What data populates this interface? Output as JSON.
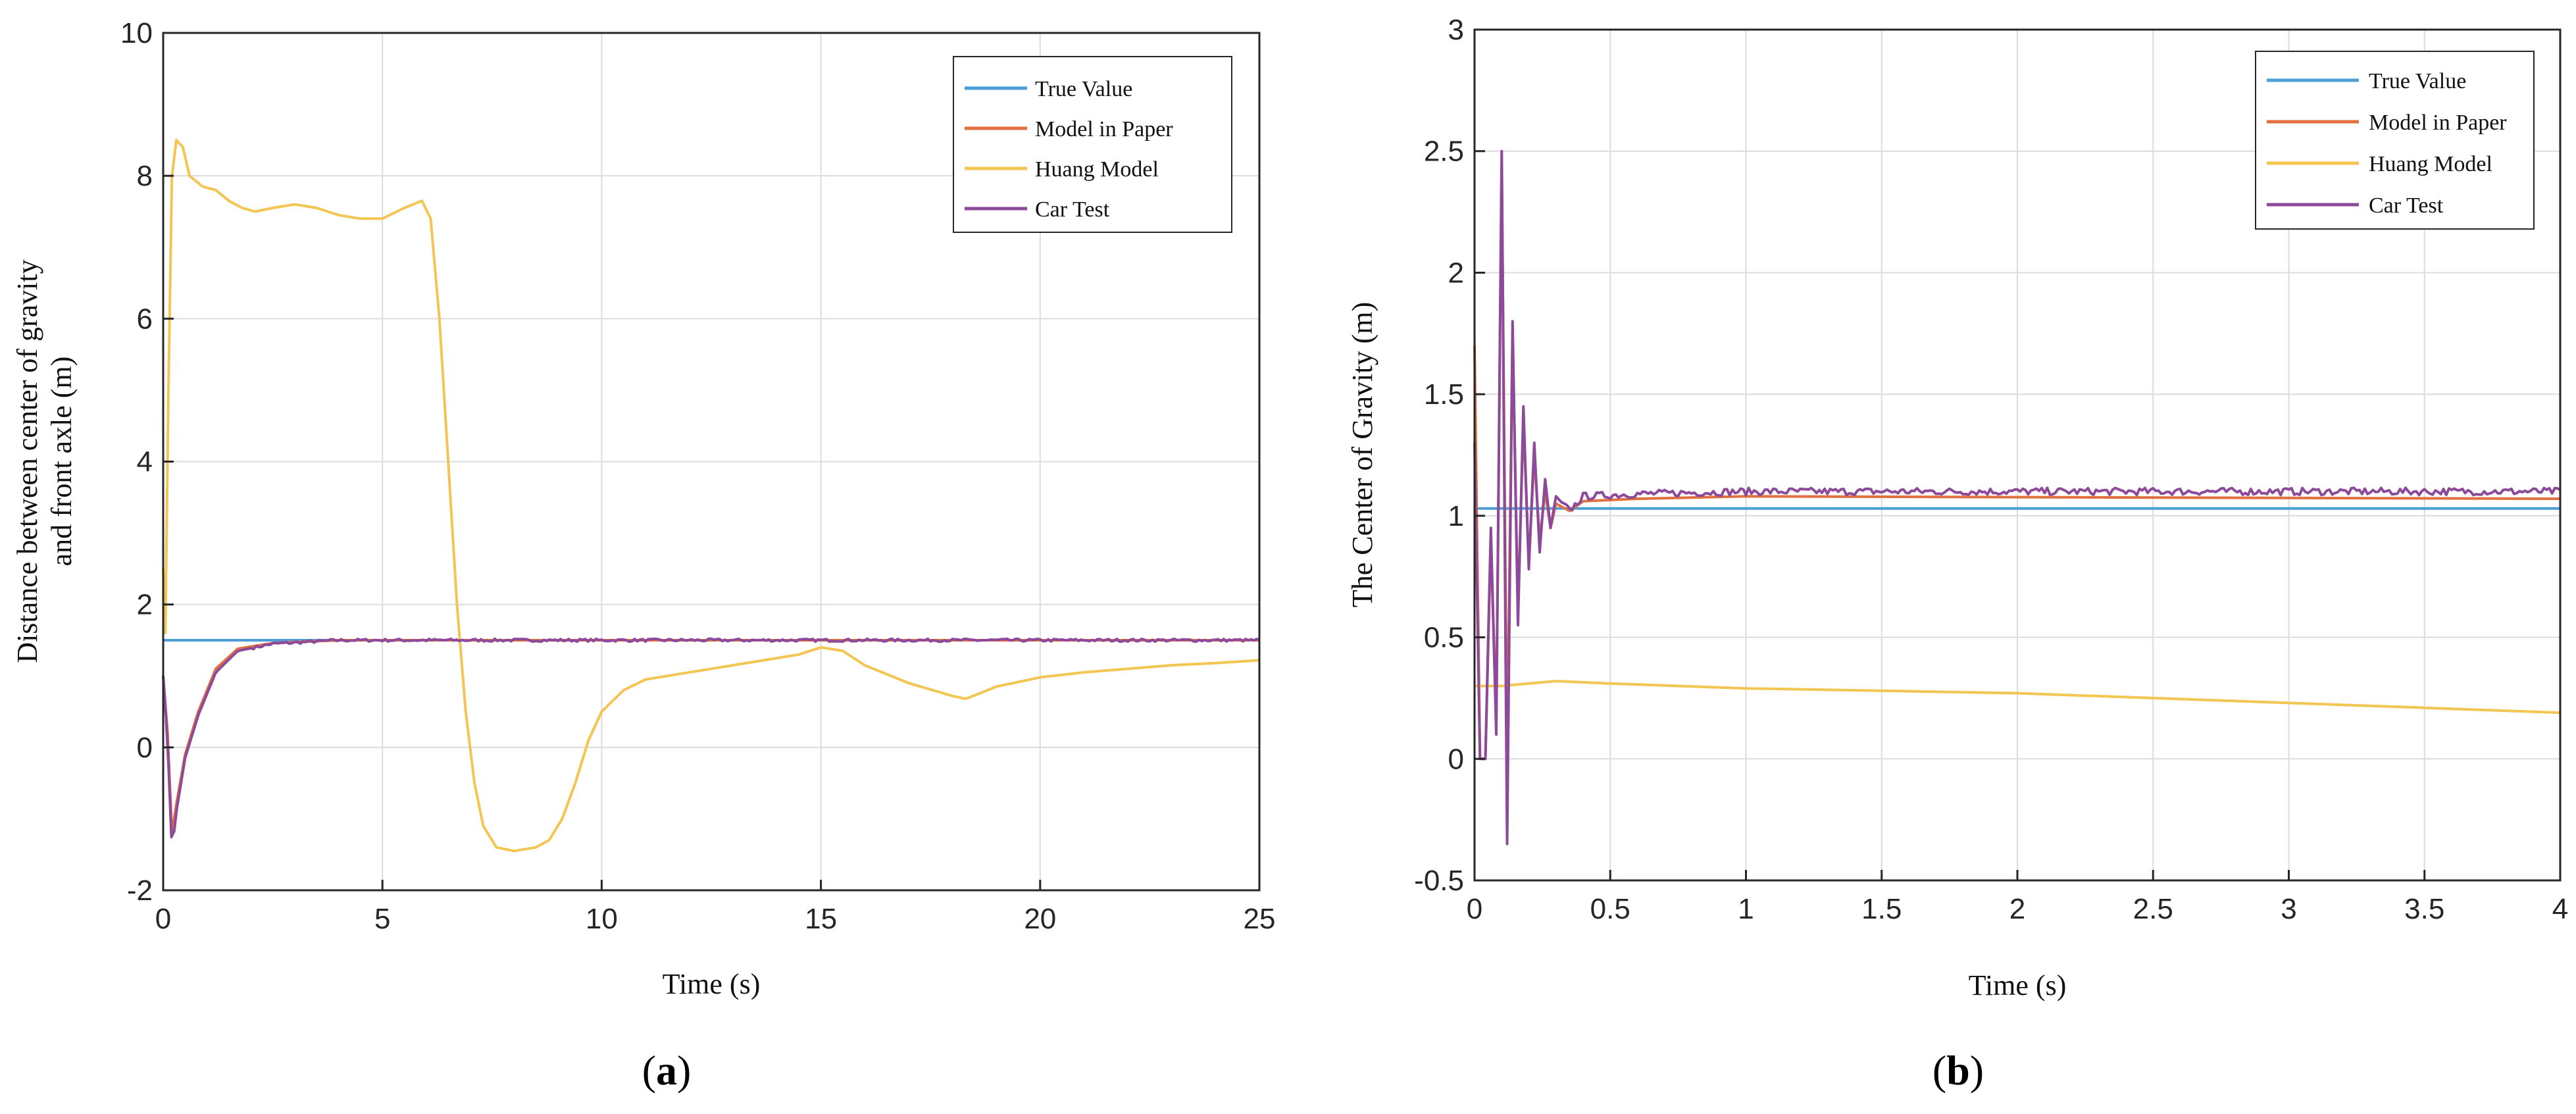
{
  "colors": {
    "true_value": "#4a9fd8",
    "model_in_paper": "#e0703e",
    "huang_model": "#f3c552",
    "car_test": "#8e4a9a",
    "grid": "#dcdcdc",
    "axis": "#262626"
  },
  "chart_data": [
    {
      "type": "line",
      "panel_label": "a",
      "xlabel": "Time (s)",
      "ylabel_line1": "Distance between center of gravity",
      "ylabel_line2": "and front axle (m)",
      "xlim": [
        0,
        25
      ],
      "ylim": [
        -2,
        10
      ],
      "xticks": [
        0,
        5,
        10,
        15,
        20,
        25
      ],
      "yticks": [
        -2,
        0,
        2,
        4,
        6,
        8,
        10
      ],
      "grid": true,
      "legend_position": "top-right",
      "series": [
        {
          "name": "True Value",
          "key": "true_value",
          "points": [
            [
              0,
              1.5
            ],
            [
              25,
              1.5
            ]
          ]
        },
        {
          "name": "Model in Paper",
          "key": "model_in_paper",
          "points": [
            [
              0,
              1.0
            ],
            [
              0.1,
              0.2
            ],
            [
              0.2,
              -1.2
            ],
            [
              0.3,
              -0.8
            ],
            [
              0.5,
              -0.1
            ],
            [
              0.8,
              0.5
            ],
            [
              1.2,
              1.1
            ],
            [
              1.7,
              1.38
            ],
            [
              2.5,
              1.46
            ],
            [
              4,
              1.5
            ],
            [
              25,
              1.5
            ]
          ]
        },
        {
          "name": "Huang Model",
          "key": "huang_model",
          "points": [
            [
              0,
              2.5
            ],
            [
              0.05,
              1.6
            ],
            [
              0.12,
              5.0
            ],
            [
              0.2,
              8.0
            ],
            [
              0.3,
              8.5
            ],
            [
              0.45,
              8.4
            ],
            [
              0.6,
              8.0
            ],
            [
              0.9,
              7.85
            ],
            [
              1.2,
              7.8
            ],
            [
              1.5,
              7.65
            ],
            [
              1.8,
              7.55
            ],
            [
              2.1,
              7.5
            ],
            [
              2.5,
              7.55
            ],
            [
              3,
              7.6
            ],
            [
              3.5,
              7.55
            ],
            [
              4,
              7.45
            ],
            [
              4.5,
              7.4
            ],
            [
              5,
              7.4
            ],
            [
              5.5,
              7.55
            ],
            [
              5.9,
              7.65
            ],
            [
              6.1,
              7.4
            ],
            [
              6.3,
              6.0
            ],
            [
              6.5,
              4.0
            ],
            [
              6.7,
              2.0
            ],
            [
              6.9,
              0.5
            ],
            [
              7.1,
              -0.5
            ],
            [
              7.3,
              -1.1
            ],
            [
              7.6,
              -1.4
            ],
            [
              8,
              -1.45
            ],
            [
              8.5,
              -1.4
            ],
            [
              8.8,
              -1.3
            ],
            [
              9.1,
              -1.0
            ],
            [
              9.4,
              -0.5
            ],
            [
              9.7,
              0.1
            ],
            [
              10,
              0.5
            ],
            [
              10.5,
              0.8
            ],
            [
              11,
              0.95
            ],
            [
              12,
              1.05
            ],
            [
              13,
              1.15
            ],
            [
              14,
              1.25
            ],
            [
              14.5,
              1.3
            ],
            [
              15,
              1.4
            ],
            [
              15.5,
              1.35
            ],
            [
              16,
              1.15
            ],
            [
              17,
              0.9
            ],
            [
              18,
              0.72
            ],
            [
              18.3,
              0.68
            ],
            [
              18.6,
              0.75
            ],
            [
              19,
              0.85
            ],
            [
              20,
              0.98
            ],
            [
              21,
              1.05
            ],
            [
              22,
              1.1
            ],
            [
              23,
              1.15
            ],
            [
              24,
              1.18
            ],
            [
              25,
              1.22
            ]
          ]
        },
        {
          "name": "Car Test",
          "key": "car_test",
          "points": [
            [
              0,
              1.0
            ],
            [
              0.1,
              0.1
            ],
            [
              0.2,
              -1.45
            ],
            [
              0.3,
              -0.9
            ],
            [
              0.5,
              -0.15
            ],
            [
              0.8,
              0.45
            ],
            [
              1.2,
              1.05
            ],
            [
              1.7,
              1.35
            ],
            [
              2.5,
              1.45
            ],
            [
              4,
              1.5
            ],
            [
              25,
              1.5
            ]
          ],
          "noise": 0.02
        }
      ]
    },
    {
      "type": "line",
      "panel_label": "b",
      "xlabel": "Time (s)",
      "ylabel": "The Center of Gravity (m)",
      "xlim": [
        0,
        4
      ],
      "ylim": [
        -0.5,
        3
      ],
      "xticks": [
        0,
        0.5,
        1,
        1.5,
        2,
        2.5,
        3,
        3.5,
        4
      ],
      "yticks": [
        -0.5,
        0,
        0.5,
        1,
        1.5,
        2,
        2.5,
        3
      ],
      "grid": true,
      "legend_position": "top-right",
      "series": [
        {
          "name": "True Value",
          "key": "true_value",
          "points": [
            [
              0,
              1.03
            ],
            [
              4,
              1.03
            ]
          ]
        },
        {
          "name": "Model in Paper",
          "key": "model_in_paper",
          "points": [
            [
              0,
              1.7
            ],
            [
              0.02,
              0.0
            ],
            [
              0.04,
              0.0
            ],
            [
              0.06,
              0.9
            ],
            [
              0.08,
              0.15
            ],
            [
              0.1,
              2.45
            ],
            [
              0.12,
              0.0
            ],
            [
              0.14,
              1.75
            ],
            [
              0.16,
              0.6
            ],
            [
              0.18,
              1.4
            ],
            [
              0.2,
              0.8
            ],
            [
              0.22,
              1.25
            ],
            [
              0.24,
              0.9
            ],
            [
              0.26,
              1.1
            ],
            [
              0.28,
              0.95
            ],
            [
              0.3,
              1.05
            ],
            [
              0.35,
              1.02
            ],
            [
              0.4,
              1.06
            ],
            [
              0.6,
              1.07
            ],
            [
              1,
              1.08
            ],
            [
              4,
              1.07
            ]
          ]
        },
        {
          "name": "Huang Model",
          "key": "huang_model",
          "points": [
            [
              0,
              0.3
            ],
            [
              0.1,
              0.3
            ],
            [
              0.2,
              0.31
            ],
            [
              0.3,
              0.32
            ],
            [
              0.5,
              0.31
            ],
            [
              1,
              0.29
            ],
            [
              1.5,
              0.28
            ],
            [
              2,
              0.27
            ],
            [
              2.5,
              0.25
            ],
            [
              3,
              0.23
            ],
            [
              3.5,
              0.21
            ],
            [
              4,
              0.19
            ]
          ]
        },
        {
          "name": "Car Test",
          "key": "car_test",
          "points": [
            [
              0,
              1.3
            ],
            [
              0.02,
              0.0
            ],
            [
              0.04,
              0.0
            ],
            [
              0.06,
              0.95
            ],
            [
              0.08,
              0.1
            ],
            [
              0.1,
              2.5
            ],
            [
              0.12,
              -0.35
            ],
            [
              0.14,
              1.8
            ],
            [
              0.16,
              0.55
            ],
            [
              0.18,
              1.45
            ],
            [
              0.2,
              0.78
            ],
            [
              0.22,
              1.3
            ],
            [
              0.24,
              0.85
            ],
            [
              0.26,
              1.15
            ],
            [
              0.28,
              0.95
            ],
            [
              0.3,
              1.08
            ],
            [
              0.35,
              1.02
            ],
            [
              0.4,
              1.08
            ],
            [
              0.6,
              1.09
            ],
            [
              1,
              1.1
            ],
            [
              4,
              1.1
            ]
          ],
          "noise": 0.015
        }
      ]
    }
  ]
}
